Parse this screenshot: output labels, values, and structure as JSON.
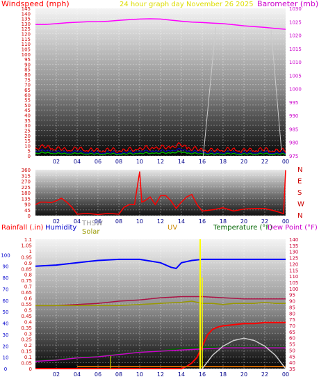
{
  "header": {
    "left_label": "Windspeed (mph)",
    "center_label": "24 hour graph day   November 26 2025",
    "right_label": "Barometer (mb)"
  },
  "colors": {
    "wind": "#ff0000",
    "gust": "#0000cc",
    "wind_green": "#00aa00",
    "barometer": "#ff00ff",
    "direction": "#ff0000",
    "humidity": "#0000ff",
    "thsw": "#aaaaaa",
    "solar": "#999900",
    "uv": "#cc8800",
    "temperature": "#006600",
    "dewpoint": "#cc00cc",
    "rain": "#ff0000",
    "sun_arc": "#cccccc"
  },
  "bottom_labels": {
    "rainfall": "Rainfall (.in)",
    "humidity": "Humidity",
    "thsw": "THSW",
    "solar": "Solar",
    "uv": "UV",
    "temperature": "Temperature (°F)",
    "dewpoint": "Dew Point (°F)"
  },
  "chart_data": [
    {
      "type": "line",
      "x_ticks": [
        "02",
        "04",
        "06",
        "08",
        "10",
        "12",
        "14",
        "16",
        "18",
        "20",
        "22",
        "00"
      ],
      "y_left_ticks": [
        "0",
        "5",
        "10",
        "15",
        "20",
        "25",
        "30",
        "35",
        "40",
        "45",
        "50",
        "55",
        "60",
        "65",
        "70",
        "75",
        "80",
        "85",
        "90",
        "95",
        "100",
        "105",
        "110",
        "115",
        "120",
        "125",
        "130",
        "135",
        "140",
        "145"
      ],
      "y_right_ticks": [
        "975",
        "980",
        "985",
        "990",
        "995",
        "1000",
        "1005",
        "1010",
        "1015",
        "1020",
        "1025",
        "1030"
      ],
      "ylim_left": [
        0,
        150
      ],
      "ylim_right": [
        975,
        1030
      ],
      "series": [
        {
          "name": "Windspeed (mph)",
          "x": [
            0,
            1,
            2,
            3,
            4,
            5,
            6,
            7,
            8,
            9,
            10,
            11,
            12,
            13,
            14,
            15,
            16,
            17,
            18,
            19,
            20,
            21,
            22,
            23,
            24
          ],
          "values": [
            6,
            7,
            5,
            4,
            5,
            4,
            3,
            4,
            3,
            4,
            5,
            6,
            6,
            7,
            9,
            5,
            4,
            3,
            4,
            4,
            3,
            4,
            4,
            3,
            3
          ]
        },
        {
          "name": "Barometer (mb)",
          "x": [
            0,
            1,
            2,
            3,
            4,
            5,
            6,
            7,
            8,
            9,
            10,
            11,
            12,
            13,
            14,
            15,
            16,
            17,
            18,
            19,
            20,
            21,
            22,
            23,
            24
          ],
          "values": [
            1024,
            1024,
            1024.3,
            1024.6,
            1024.8,
            1025,
            1025,
            1025.2,
            1025.5,
            1025.8,
            1026,
            1026.1,
            1026,
            1025.6,
            1025.2,
            1024.9,
            1024.7,
            1024.5,
            1024.3,
            1023.9,
            1023.5,
            1023.2,
            1022.9,
            1022.5,
            1022.2
          ]
        }
      ]
    },
    {
      "type": "line",
      "x_ticks": [
        "02",
        "04",
        "06",
        "08",
        "10",
        "12",
        "14",
        "16",
        "18",
        "20",
        "22",
        "00"
      ],
      "y_left_ticks": [
        "0",
        "45",
        "90",
        "135",
        "180",
        "225",
        "270",
        "315",
        "360"
      ],
      "y_right_ticks": [
        "N",
        "W",
        "S",
        "E",
        "N"
      ],
      "ylim_left": [
        0,
        360
      ],
      "series": [
        {
          "name": "Wind direction",
          "x": [
            0,
            0.5,
            1,
            1.5,
            2,
            2.5,
            3,
            3.5,
            4,
            5,
            6,
            7,
            8,
            8.5,
            9,
            9.5,
            10,
            10.2,
            10.5,
            11,
            11.5,
            12,
            12.5,
            13,
            13.5,
            14,
            14.5,
            15,
            15.5,
            16,
            17,
            18,
            19,
            20,
            21,
            22,
            23,
            23.8,
            24
          ],
          "values": [
            90,
            100,
            110,
            95,
            120,
            130,
            110,
            60,
            15,
            12,
            12,
            12,
            15,
            60,
            90,
            80,
            350,
            100,
            120,
            140,
            90,
            150,
            160,
            110,
            60,
            100,
            150,
            160,
            90,
            30,
            50,
            55,
            40,
            45,
            60,
            50,
            40,
            10,
            360
          ]
        }
      ]
    },
    {
      "type": "line",
      "x_ticks": [
        "02",
        "04",
        "06",
        "08",
        "10",
        "12",
        "14",
        "16",
        "18",
        "20",
        "22",
        "00"
      ],
      "y_left_ticks": [
        "0",
        "0.05",
        "0.1",
        "0.15",
        "0.2",
        "0.25",
        "0.3",
        "0.35",
        "0.4",
        "0.45",
        "0.5",
        "0.55",
        "0.6",
        "0.65",
        "0.7",
        "0.75",
        "0.8",
        "0.85",
        "0.9",
        "0.95",
        "1",
        "1.05",
        "1.1"
      ],
      "y_left2_ticks": [
        "0",
        "10",
        "20",
        "30",
        "40",
        "50",
        "60",
        "70",
        "80",
        "90",
        "100"
      ],
      "y_right_ticks": [
        "35",
        "40",
        "45",
        "50",
        "55",
        "60",
        "65",
        "70",
        "75",
        "80",
        "85",
        "90",
        "95",
        "100",
        "105",
        "110",
        "115",
        "120",
        "125",
        "130",
        "135",
        "140"
      ],
      "ylim_left": [
        0,
        1.15
      ],
      "ylim_right": [
        30,
        145
      ],
      "series": [
        {
          "name": "Humidity",
          "x": [
            0,
            2,
            4,
            6,
            8,
            10,
            12,
            13,
            13.5,
            14,
            15,
            16,
            18,
            20,
            22,
            24
          ],
          "values": [
            90,
            91,
            93,
            95,
            96,
            96,
            93,
            89,
            88,
            93,
            95,
            96,
            96,
            96,
            96,
            96
          ]
        },
        {
          "name": "Temperature (°F)",
          "x": [
            0,
            2,
            4,
            6,
            8,
            10,
            12,
            14,
            16,
            18,
            20,
            22,
            24
          ],
          "values": [
            37,
            38,
            40,
            41,
            43,
            45,
            46,
            48,
            49,
            49,
            49,
            49,
            49
          ]
        },
        {
          "name": "Dew Point (°F)",
          "x": [
            0,
            2,
            4,
            6,
            8,
            10,
            12,
            14,
            16,
            18,
            20,
            22,
            24
          ],
          "values": [
            37,
            38,
            40,
            41,
            43,
            45,
            46,
            47,
            48,
            49,
            49,
            49,
            49
          ]
        },
        {
          "name": "THSW",
          "x": [
            0,
            2,
            4,
            6,
            8,
            10,
            12,
            14,
            15,
            16,
            17,
            18,
            19,
            20,
            21,
            22,
            23,
            24
          ],
          "values": [
            86,
            86,
            86,
            86,
            86,
            87,
            88,
            89,
            90,
            88,
            88,
            87,
            88,
            88,
            88,
            89,
            88,
            88
          ]
        },
        {
          "name": "THSW2",
          "x": [
            0,
            2,
            4,
            6,
            8,
            10,
            12,
            14,
            16,
            18,
            20,
            22,
            24
          ],
          "values": [
            86,
            86,
            87,
            88,
            90,
            91,
            93,
            94,
            94,
            93,
            92,
            92,
            92
          ]
        },
        {
          "name": "Solar",
          "x": [
            0,
            14,
            15,
            15.5,
            15.8,
            16,
            16.2,
            16.5,
            17,
            24
          ],
          "values": [
            0,
            0,
            0,
            0,
            120,
            140,
            0,
            0,
            0,
            0
          ]
        },
        {
          "name": "Rainfall (.in)",
          "x": [
            0,
            12,
            14,
            14.5,
            15,
            15.5,
            16,
            16.5,
            17,
            17.5,
            18,
            19,
            20,
            21,
            22,
            23,
            24
          ],
          "values": [
            0,
            0,
            0,
            0.02,
            0.05,
            0.1,
            0.2,
            0.3,
            0.35,
            0.37,
            0.38,
            0.39,
            0.4,
            0.4,
            0.41,
            0.41,
            0.41
          ]
        },
        {
          "name": "UV",
          "x": [
            7,
            7.2,
            13,
            14,
            15,
            16
          ],
          "values": [
            0.02,
            0.02,
            0.02,
            0.03,
            0.02,
            0.01
          ]
        },
        {
          "name": "Sun",
          "x": [
            16,
            17,
            18,
            19,
            20,
            21,
            22,
            23,
            24
          ],
          "values": [
            0,
            0.12,
            0.2,
            0.25,
            0.27,
            0.25,
            0.2,
            0.12,
            0
          ]
        }
      ]
    }
  ]
}
